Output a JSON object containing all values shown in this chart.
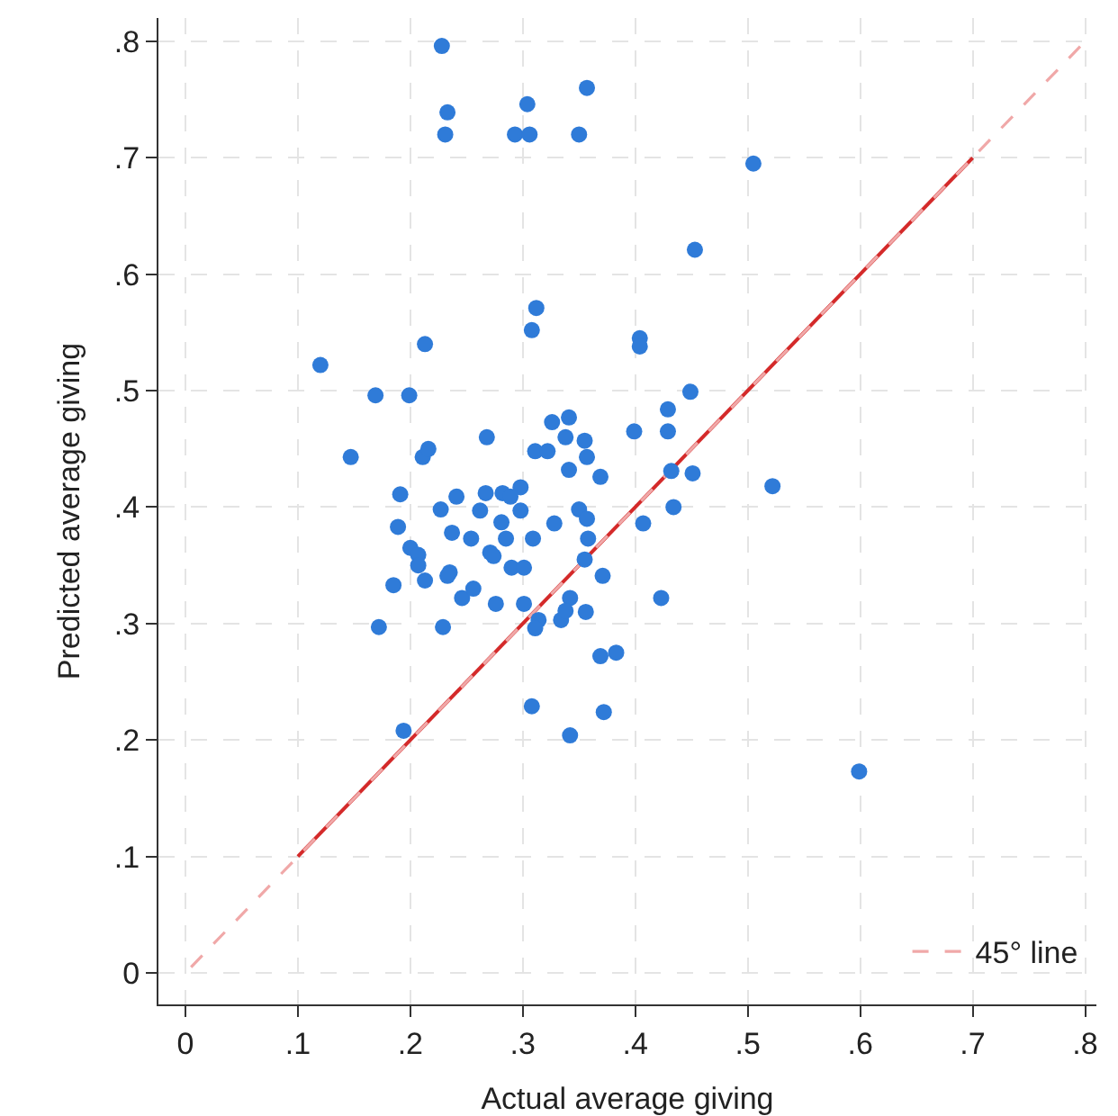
{
  "chart_data": {
    "type": "scatter",
    "xlabel": "Actual average giving",
    "ylabel": "Predicted average giving",
    "xlim": [
      -0.024,
      0.81
    ],
    "ylim": [
      -0.027,
      0.82
    ],
    "xticks": [
      0,
      {
        "value": 0.1,
        "label": ".1"
      },
      {
        "value": 0.2,
        "label": ".2"
      },
      {
        "value": 0.3,
        "label": ".3"
      },
      {
        "value": 0.4,
        "label": ".4"
      },
      {
        "value": 0.5,
        "label": ".5"
      },
      {
        "value": 0.6,
        "label": ".6"
      },
      {
        "value": 0.7,
        "label": ".7"
      },
      {
        "value": 0.8,
        "label": ".8"
      }
    ],
    "yticks": [
      0,
      {
        "value": 0.1,
        "label": ".1"
      },
      {
        "value": 0.2,
        "label": ".2"
      },
      {
        "value": 0.3,
        "label": ".3"
      },
      {
        "value": 0.4,
        "label": ".4"
      },
      {
        "value": 0.5,
        "label": ".5"
      },
      {
        "value": 0.6,
        "label": ".6"
      },
      {
        "value": 0.7,
        "label": ".7"
      },
      {
        "value": 0.8,
        "label": ".8"
      }
    ],
    "grid": true,
    "legend": "bottom right",
    "series": [
      {
        "marker": "circle",
        "color": "#2f7bd8",
        "x": [
          0.228,
          0.233,
          0.231,
          0.293,
          0.306,
          0.304,
          0.35,
          0.357,
          0.505,
          0.453,
          0.404,
          0.404,
          0.449,
          0.429,
          0.429,
          0.399,
          0.12,
          0.169,
          0.199,
          0.213,
          0.312,
          0.308,
          0.147,
          0.211,
          0.216,
          0.268,
          0.326,
          0.341,
          0.338,
          0.355,
          0.357,
          0.311,
          0.322,
          0.341,
          0.369,
          0.191,
          0.241,
          0.267,
          0.282,
          0.298,
          0.289,
          0.227,
          0.262,
          0.298,
          0.189,
          0.237,
          0.254,
          0.281,
          0.285,
          0.309,
          0.328,
          0.35,
          0.357,
          0.358,
          0.2,
          0.207,
          0.271,
          0.274,
          0.29,
          0.301,
          0.235,
          0.207,
          0.185,
          0.213,
          0.233,
          0.246,
          0.256,
          0.276,
          0.301,
          0.172,
          0.229,
          0.314,
          0.311,
          0.342,
          0.334,
          0.338,
          0.356,
          0.355,
          0.371,
          0.423,
          0.369,
          0.383,
          0.308,
          0.372,
          0.342,
          0.194,
          0.432,
          0.451,
          0.522,
          0.434,
          0.407,
          0.599
        ],
        "values": [
          0.796,
          0.739,
          0.72,
          0.72,
          0.72,
          0.746,
          0.72,
          0.76,
          0.695,
          0.621,
          0.545,
          0.538,
          0.499,
          0.484,
          0.465,
          0.465,
          0.522,
          0.496,
          0.496,
          0.54,
          0.571,
          0.552,
          0.443,
          0.443,
          0.45,
          0.46,
          0.473,
          0.477,
          0.46,
          0.457,
          0.443,
          0.448,
          0.448,
          0.432,
          0.426,
          0.411,
          0.409,
          0.412,
          0.412,
          0.417,
          0.409,
          0.398,
          0.397,
          0.397,
          0.383,
          0.378,
          0.373,
          0.387,
          0.373,
          0.373,
          0.386,
          0.398,
          0.39,
          0.373,
          0.365,
          0.359,
          0.361,
          0.358,
          0.348,
          0.348,
          0.344,
          0.35,
          0.333,
          0.337,
          0.341,
          0.322,
          0.33,
          0.317,
          0.317,
          0.297,
          0.297,
          0.303,
          0.296,
          0.322,
          0.303,
          0.311,
          0.31,
          0.355,
          0.341,
          0.322,
          0.272,
          0.275,
          0.229,
          0.224,
          0.204,
          0.208,
          0.431,
          0.429,
          0.418,
          0.4,
          0.386,
          0.173
        ]
      },
      {
        "type": "line",
        "marker": "none",
        "color": "#d42a2a",
        "line_style": "solid",
        "x": [
          0.1,
          0.7
        ],
        "values": [
          0.1,
          0.7
        ]
      },
      {
        "type": "line",
        "marker": "none",
        "name": "45° line",
        "color": "#f0a8a8",
        "line_style": "dashed",
        "x": [
          0.005,
          0.8
        ],
        "values": [
          0.005,
          0.8
        ]
      }
    ]
  }
}
